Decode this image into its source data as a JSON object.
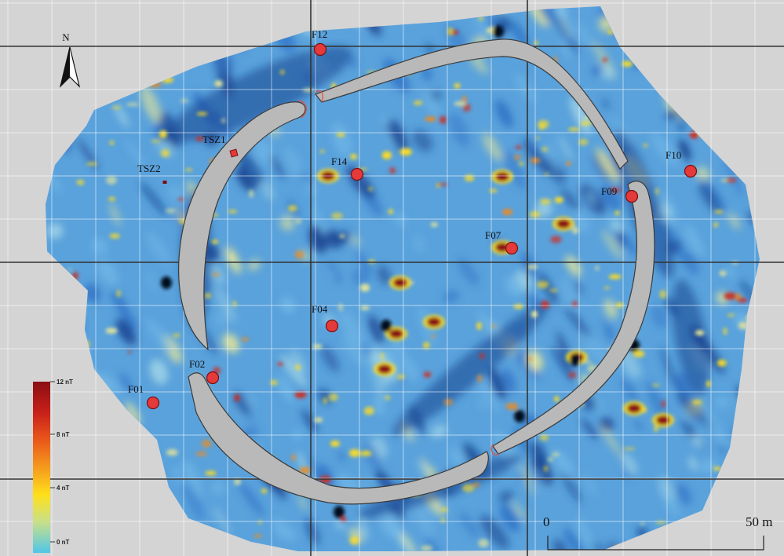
{
  "map": {
    "north_label": "N",
    "background_color": "#d4d4d4",
    "grid_color": "#ffffff",
    "major_grid_color": "#333333",
    "ditch_color": "#b9b9b9"
  },
  "features": [
    {
      "label": "F12",
      "kind": "pit"
    },
    {
      "label": "TSZ1",
      "kind": "square"
    },
    {
      "label": "TSZ2",
      "kind": "small"
    },
    {
      "label": "F14",
      "kind": "pit"
    },
    {
      "label": "F10",
      "kind": "pit"
    },
    {
      "label": "F09",
      "kind": "pit"
    },
    {
      "label": "F07",
      "kind": "pit"
    },
    {
      "label": "F04",
      "kind": "pit"
    },
    {
      "label": "F02",
      "kind": "pit"
    },
    {
      "label": "F01",
      "kind": "pit"
    }
  ],
  "colorbar": {
    "labels": [
      "12 nT",
      "8 nT",
      "4 nT",
      "0 nT"
    ],
    "colors": [
      "#8b0e12",
      "#e8541a",
      "#ffe01a",
      "#4fc6e8"
    ]
  },
  "scale_bar": {
    "start_label": "0",
    "end_label": "50 m"
  },
  "palette": {
    "dark_blue": "#16418e",
    "blue": "#2f73c6",
    "light_blue": "#6fb6e6",
    "cyan": "#9fd3e6",
    "pale_yellow": "#e4e498",
    "yellow": "#ffdd22",
    "orange": "#f08a1c",
    "red": "#d02a1c",
    "dark_red": "#8b0e12",
    "pit_fill": "#e53a3a"
  }
}
